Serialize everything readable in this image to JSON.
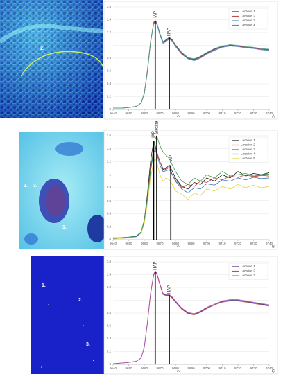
{
  "micrographs": [
    {
      "labels": [
        "2."
      ]
    },
    {
      "labels": [
        "3.",
        "2.",
        "1."
      ]
    },
    {
      "labels": [
        "1.",
        "2.",
        "3."
      ]
    }
  ],
  "chart_data": [
    {
      "type": "line",
      "panel_label": "A",
      "x_label": "eV",
      "x": [
        9640,
        9645,
        9650,
        9655,
        9658,
        9660,
        9662,
        9664,
        9666,
        9667,
        9668,
        9670,
        9672,
        9674,
        9676,
        9678,
        9680,
        9684,
        9688,
        9692,
        9696,
        9700,
        9705,
        9710,
        9715,
        9720,
        9725,
        9730,
        9735,
        9740
      ],
      "xlim": [
        9640,
        9740
      ],
      "xticks": [
        9640,
        9650,
        9660,
        9670,
        9680,
        9690,
        9700,
        9710,
        9720,
        9730,
        9740
      ],
      "ylim": [
        0,
        1.6
      ],
      "yticks": [
        0,
        0.2,
        0.4,
        0.6,
        0.8,
        1,
        1.2,
        1.4,
        1.6
      ],
      "grid": true,
      "legend": "top-right",
      "annotations": [
        {
          "text": "HAP",
          "x": 9667,
          "y": 1.38
        },
        {
          "text": "HAP",
          "x": 9676,
          "y": 1.12
        }
      ],
      "series": [
        {
          "name": "Location 1",
          "color": "#2e2a5a",
          "values": [
            0.02,
            0.02,
            0.03,
            0.05,
            0.1,
            0.25,
            0.6,
            1.05,
            1.35,
            1.38,
            1.35,
            1.18,
            1.05,
            1.08,
            1.12,
            1.08,
            1.0,
            0.88,
            0.8,
            0.78,
            0.82,
            0.88,
            0.94,
            0.98,
            1.0,
            0.99,
            0.97,
            0.96,
            0.94,
            0.93
          ]
        },
        {
          "name": "Location 2",
          "color": "#c0504d",
          "values": [
            0.02,
            0.02,
            0.03,
            0.05,
            0.1,
            0.26,
            0.62,
            1.06,
            1.34,
            1.37,
            1.34,
            1.17,
            1.04,
            1.07,
            1.11,
            1.07,
            0.99,
            0.87,
            0.79,
            0.77,
            0.81,
            0.87,
            0.93,
            0.97,
            0.99,
            0.98,
            0.97,
            0.95,
            0.94,
            0.92
          ]
        },
        {
          "name": "Location 3",
          "color": "#5b8fc9",
          "values": [
            0.02,
            0.02,
            0.03,
            0.05,
            0.1,
            0.24,
            0.58,
            1.03,
            1.33,
            1.36,
            1.33,
            1.16,
            1.03,
            1.06,
            1.1,
            1.06,
            0.98,
            0.86,
            0.79,
            0.76,
            0.8,
            0.86,
            0.92,
            0.97,
            0.99,
            0.98,
            0.96,
            0.95,
            0.93,
            0.92
          ]
        },
        {
          "name": "Location 4",
          "color": "#4ea07a",
          "values": [
            0.02,
            0.02,
            0.03,
            0.05,
            0.1,
            0.25,
            0.6,
            1.04,
            1.36,
            1.39,
            1.36,
            1.19,
            1.06,
            1.09,
            1.13,
            1.09,
            1.01,
            0.89,
            0.81,
            0.79,
            0.83,
            0.89,
            0.95,
            0.99,
            1.01,
            1.0,
            0.98,
            0.97,
            0.95,
            0.94
          ]
        }
      ]
    },
    {
      "type": "line",
      "panel_label": "B",
      "x_label": "eV",
      "x": [
        9640,
        9645,
        9650,
        9655,
        9658,
        9660,
        9662,
        9664,
        9666,
        9667,
        9668,
        9670,
        9672,
        9674,
        9676,
        9678,
        9680,
        9684,
        9688,
        9692,
        9696,
        9700,
        9705,
        9710,
        9715,
        9720,
        9725,
        9730,
        9735,
        9740
      ],
      "xlim": [
        9640,
        9740
      ],
      "xticks": [
        9640,
        9650,
        9660,
        9670,
        9680,
        9690,
        9700,
        9710,
        9720,
        9730,
        9740
      ],
      "ylim": [
        0,
        1.6
      ],
      "yticks": [
        0,
        0.2,
        0.4,
        0.6,
        0.8,
        1,
        1.2,
        1.4,
        1.6
      ],
      "grid": true,
      "legend": "top-right",
      "annotations": [
        {
          "text": "HAP",
          "x": 9666,
          "y": 1.52
        },
        {
          "text": "Silicate",
          "x": 9668,
          "y": 1.6
        },
        {
          "text": "HAP",
          "x": 9677,
          "y": 1.15
        }
      ],
      "series": [
        {
          "name": "Location 1",
          "color": "#1a1a1a",
          "values": [
            0.02,
            0.03,
            0.04,
            0.05,
            0.12,
            0.3,
            0.7,
            1.2,
            1.52,
            1.45,
            1.35,
            1.2,
            1.08,
            1.1,
            1.15,
            1.05,
            0.95,
            0.82,
            0.78,
            0.88,
            0.85,
            0.95,
            0.9,
            1.0,
            0.95,
            1.05,
            0.98,
            1.02,
            1.0,
            1.03
          ]
        },
        {
          "name": "Location 2",
          "color": "#c0392b",
          "values": [
            0.02,
            0.02,
            0.03,
            0.05,
            0.11,
            0.28,
            0.66,
            1.1,
            1.4,
            1.42,
            1.35,
            1.2,
            1.1,
            1.08,
            1.12,
            1.0,
            0.92,
            0.8,
            0.85,
            0.82,
            0.9,
            0.88,
            0.95,
            0.92,
            0.98,
            0.96,
            1.0,
            0.97,
            0.99,
            0.98
          ]
        },
        {
          "name": "Location 3",
          "color": "#2f6db5",
          "values": [
            0.02,
            0.02,
            0.03,
            0.05,
            0.1,
            0.26,
            0.62,
            1.05,
            1.35,
            1.38,
            1.32,
            1.15,
            1.05,
            1.06,
            1.08,
            1.0,
            0.9,
            0.78,
            0.72,
            0.8,
            0.78,
            0.86,
            0.84,
            0.92,
            0.9,
            0.95,
            0.92,
            0.96,
            0.94,
            0.95
          ]
        },
        {
          "name": "Location 4",
          "color": "#3a9a4a",
          "values": [
            0.03,
            0.03,
            0.04,
            0.06,
            0.12,
            0.3,
            0.65,
            1.05,
            1.4,
            1.55,
            1.6,
            1.45,
            1.35,
            1.3,
            1.25,
            1.15,
            1.05,
            0.9,
            0.85,
            0.95,
            0.9,
            1.0,
            0.95,
            1.05,
            0.98,
            1.0,
            1.02,
            0.98,
            1.0,
            1.01
          ]
        },
        {
          "name": "Location 5",
          "color": "#e2d43c",
          "values": [
            0.01,
            0.02,
            0.03,
            0.04,
            0.1,
            0.25,
            0.55,
            0.95,
            1.2,
            1.25,
            1.2,
            1.0,
            0.9,
            0.95,
            0.92,
            0.85,
            0.75,
            0.7,
            0.62,
            0.72,
            0.68,
            0.78,
            0.75,
            0.82,
            0.78,
            0.85,
            0.8,
            0.84,
            0.8,
            0.82
          ]
        }
      ]
    },
    {
      "type": "line",
      "panel_label": "C",
      "x_label": "eV",
      "x": [
        9640,
        9645,
        9650,
        9655,
        9658,
        9660,
        9662,
        9664,
        9666,
        9667,
        9668,
        9670,
        9672,
        9674,
        9676,
        9678,
        9680,
        9684,
        9688,
        9692,
        9696,
        9700,
        9705,
        9710,
        9715,
        9720,
        9725,
        9730,
        9735,
        9740
      ],
      "xlim": [
        9640,
        9740
      ],
      "xticks": [
        9640,
        9650,
        9660,
        9670,
        9680,
        9690,
        9700,
        9710,
        9720,
        9730,
        9740
      ],
      "ylim": [
        0,
        1.6
      ],
      "yticks": [
        0,
        0.2,
        0.4,
        0.6,
        0.8,
        1,
        1.2,
        1.4,
        1.6
      ],
      "grid": true,
      "legend": "top-right",
      "annotations": [
        {
          "text": "HAP",
          "x": 9667,
          "y": 1.45
        },
        {
          "text": "HAP",
          "x": 9676,
          "y": 1.08
        }
      ],
      "series": [
        {
          "name": "Location 1",
          "color": "#3d2c6e",
          "values": [
            0.01,
            0.02,
            0.03,
            0.05,
            0.1,
            0.27,
            0.65,
            1.1,
            1.4,
            1.45,
            1.42,
            1.25,
            1.1,
            1.08,
            1.08,
            1.04,
            0.98,
            0.87,
            0.8,
            0.78,
            0.82,
            0.88,
            0.93,
            0.98,
            1.0,
            1.0,
            0.98,
            0.96,
            0.94,
            0.92
          ]
        },
        {
          "name": "Location 2",
          "color": "#c0504d",
          "values": [
            0.01,
            0.02,
            0.03,
            0.05,
            0.1,
            0.26,
            0.64,
            1.09,
            1.39,
            1.44,
            1.41,
            1.24,
            1.09,
            1.07,
            1.07,
            1.03,
            0.97,
            0.86,
            0.79,
            0.77,
            0.81,
            0.87,
            0.93,
            0.97,
            0.99,
            0.99,
            0.97,
            0.95,
            0.93,
            0.91
          ]
        },
        {
          "name": "Location 3",
          "color": "#b05cc0",
          "values": [
            0.01,
            0.02,
            0.03,
            0.05,
            0.1,
            0.27,
            0.66,
            1.11,
            1.41,
            1.46,
            1.43,
            1.26,
            1.11,
            1.09,
            1.09,
            1.05,
            0.99,
            0.88,
            0.81,
            0.79,
            0.83,
            0.89,
            0.94,
            0.99,
            1.01,
            1.01,
            0.99,
            0.97,
            0.95,
            0.93
          ]
        }
      ]
    }
  ]
}
